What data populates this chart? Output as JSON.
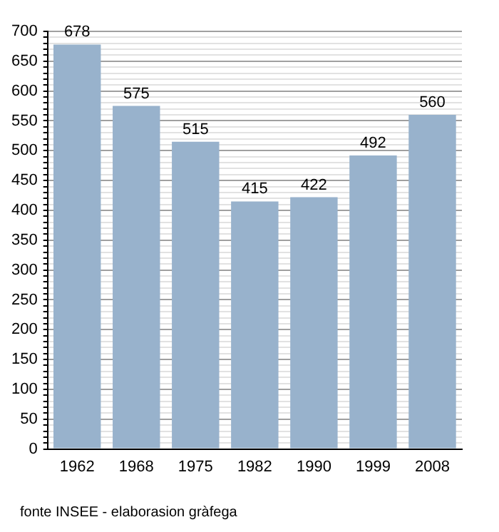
{
  "chart_data": {
    "type": "bar",
    "categories": [
      "1962",
      "1968",
      "1975",
      "1982",
      "1990",
      "1999",
      "2008"
    ],
    "values": [
      678,
      575,
      515,
      415,
      422,
      492,
      560
    ],
    "color": "#98b2cc",
    "data_labels": true,
    "grid": "y",
    "legend": false,
    "ylim": [
      0,
      700
    ],
    "yticks": [
      0,
      {
        "value": 10,
        "label": null
      },
      {
        "value": 20,
        "label": null
      },
      {
        "value": 30,
        "label": null
      },
      {
        "value": 40,
        "label": null
      },
      50,
      {
        "value": 60,
        "label": null
      },
      {
        "value": 70,
        "label": null
      },
      {
        "value": 80,
        "label": null
      },
      {
        "value": 90,
        "label": null
      },
      100,
      {
        "value": 110,
        "label": null
      },
      {
        "value": 120,
        "label": null
      },
      {
        "value": 130,
        "label": null
      },
      {
        "value": 140,
        "label": null
      },
      150,
      {
        "value": 160,
        "label": null
      },
      {
        "value": 170,
        "label": null
      },
      {
        "value": 180,
        "label": null
      },
      {
        "value": 190,
        "label": null
      },
      200,
      {
        "value": 210,
        "label": null
      },
      {
        "value": 220,
        "label": null
      },
      {
        "value": 230,
        "label": null
      },
      {
        "value": 240,
        "label": null
      },
      250,
      {
        "value": 260,
        "label": null
      },
      {
        "value": 270,
        "label": null
      },
      {
        "value": 280,
        "label": null
      },
      {
        "value": 290,
        "label": null
      },
      300,
      {
        "value": 310,
        "label": null
      },
      {
        "value": 320,
        "label": null
      },
      {
        "value": 330,
        "label": null
      },
      {
        "value": 340,
        "label": null
      },
      350,
      {
        "value": 360,
        "label": null
      },
      {
        "value": 370,
        "label": null
      },
      {
        "value": 380,
        "label": null
      },
      {
        "value": 390,
        "label": null
      },
      400,
      {
        "value": 410,
        "label": null
      },
      {
        "value": 420,
        "label": null
      },
      {
        "value": 430,
        "label": null
      },
      {
        "value": 440,
        "label": null
      },
      450,
      {
        "value": 460,
        "label": null
      },
      {
        "value": 470,
        "label": null
      },
      {
        "value": 480,
        "label": null
      },
      {
        "value": 490,
        "label": null
      },
      500,
      {
        "value": 510,
        "label": null
      },
      {
        "value": 520,
        "label": null
      },
      {
        "value": 530,
        "label": null
      },
      {
        "value": 540,
        "label": null
      },
      550,
      {
        "value": 560,
        "label": null
      },
      {
        "value": 570,
        "label": null
      },
      {
        "value": 580,
        "label": null
      },
      {
        "value": 590,
        "label": null
      },
      600,
      {
        "value": 610,
        "label": null
      },
      {
        "value": 620,
        "label": null
      },
      {
        "value": 630,
        "label": null
      },
      {
        "value": 640,
        "label": null
      },
      650,
      {
        "value": 660,
        "label": null
      },
      {
        "value": 670,
        "label": null
      },
      {
        "value": 680,
        "label": null
      },
      {
        "value": 690,
        "label": null
      },
      700
    ],
    "annotations": [
      "fonte INSEE - elaborasion gràfega"
    ]
  }
}
